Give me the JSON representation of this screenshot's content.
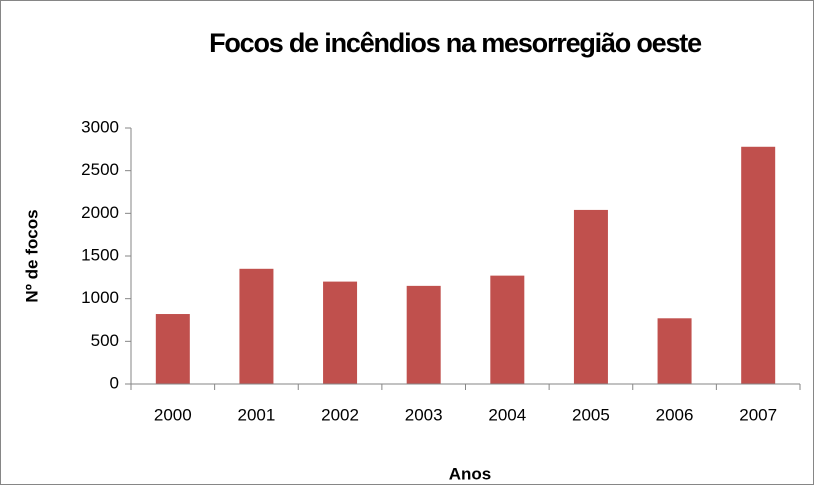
{
  "chart_data": {
    "type": "bar",
    "title": "Focos de incêndios na mesorregião oeste",
    "x_label": "Anos",
    "y_label": "Nº  de focos",
    "categories": [
      "2000",
      "2001",
      "2002",
      "2003",
      "2004",
      "2005",
      "2006",
      "2007"
    ],
    "values": [
      820,
      1350,
      1200,
      1150,
      1270,
      2040,
      770,
      2780
    ],
    "color": "#c0504d",
    "ylim": [
      0,
      3000
    ],
    "yticks": [
      0,
      500,
      1000,
      1500,
      2000,
      2500,
      3000
    ],
    "grid": false
  }
}
